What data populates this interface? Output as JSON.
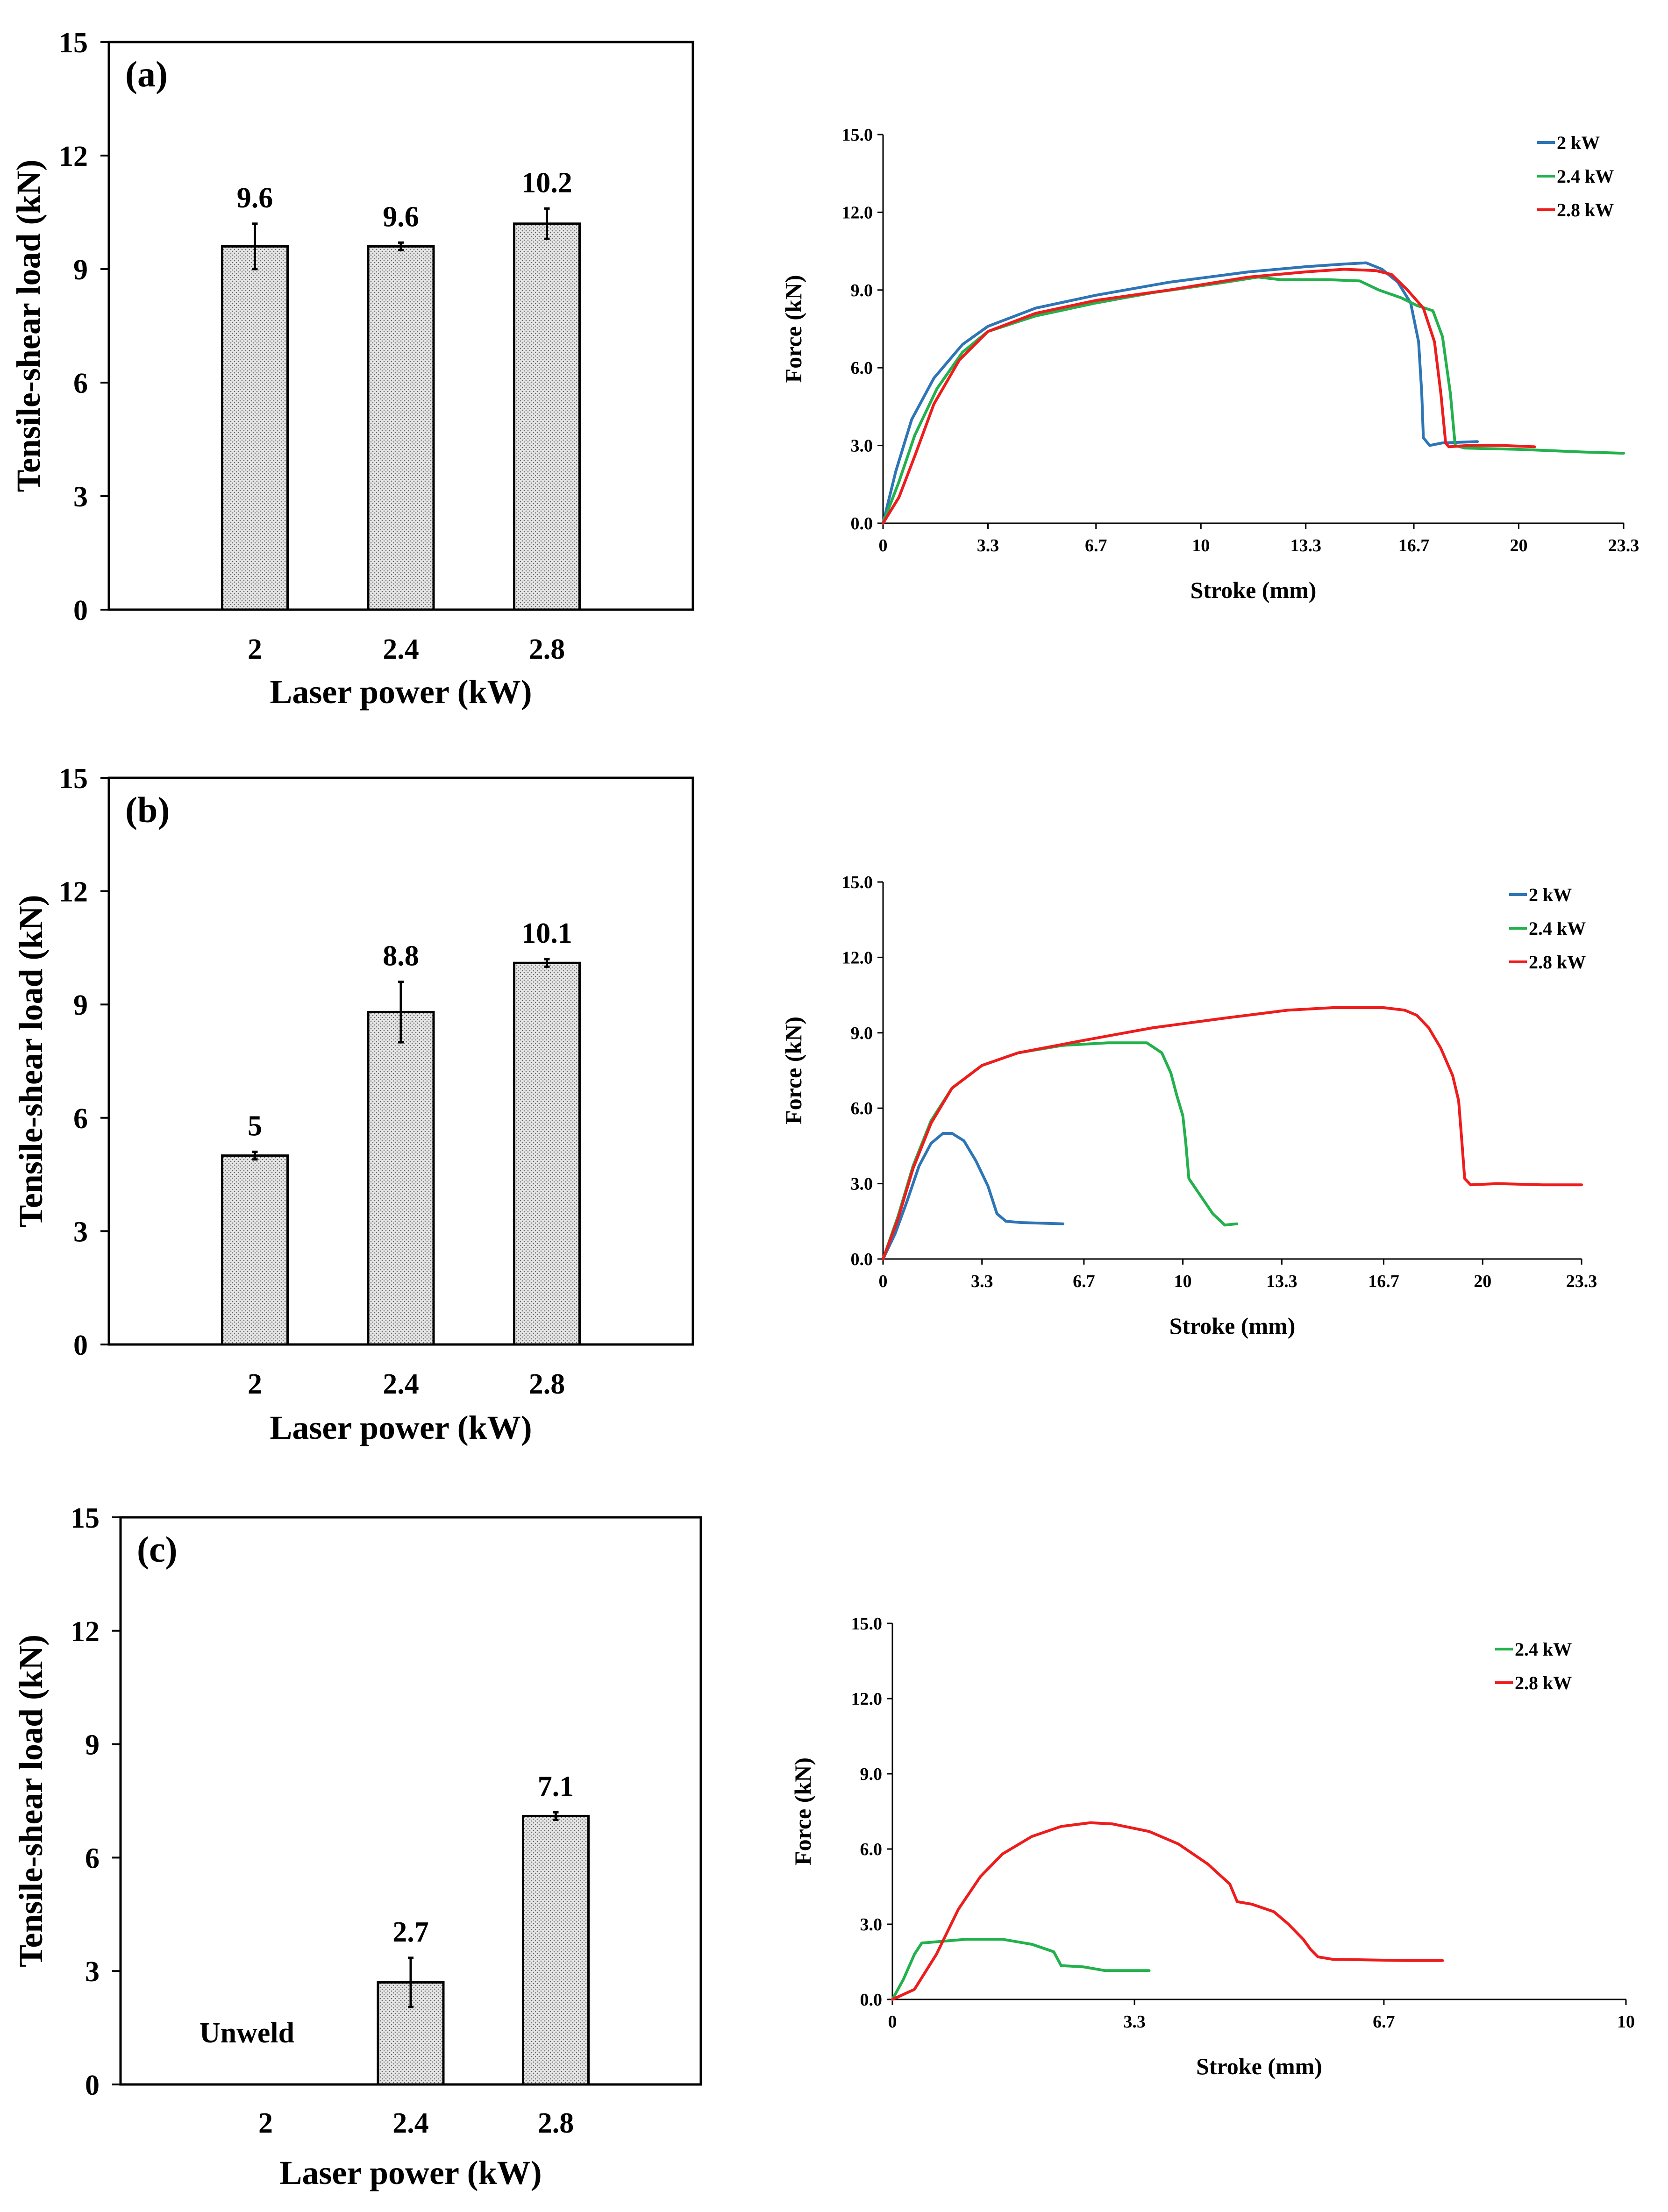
{
  "colors": {
    "blue": "#2e75b6",
    "green": "#22b14c",
    "red": "#ee1c1c",
    "bar_fill": "#e6e6e6",
    "axis": "#000000"
  },
  "chart_data": [
    {
      "type": "bar",
      "panel": "(a)",
      "categories": [
        "2",
        "2.4",
        "2.8"
      ],
      "values": [
        9.6,
        9.6,
        10.2
      ],
      "value_labels": [
        "9.6",
        "9.6",
        "10.2"
      ],
      "errors": [
        0.6,
        0.1,
        0.4
      ],
      "xlabel": "Laser power (kW)",
      "ylabel": "Tensile-shear load (kN)",
      "ylim": [
        0,
        15
      ],
      "yticks": [
        "0",
        "3",
        "6",
        "9",
        "12",
        "15"
      ]
    },
    {
      "type": "line",
      "xlabel": "Stroke (mm)",
      "ylabel": "Force (kN)",
      "xlim": [
        0,
        23.3
      ],
      "ylim": [
        0,
        15
      ],
      "xticks": [
        "0",
        "3.3",
        "6.7",
        "10",
        "13.3",
        "16.7",
        "20",
        "23.3"
      ],
      "yticks": [
        "0.0",
        "3.0",
        "6.0",
        "9.0",
        "12.0",
        "15.0"
      ],
      "legend": [
        "2 kW",
        "2.4 kW",
        "2.8 kW"
      ],
      "series": [
        {
          "name": "2 kW",
          "color": "blue",
          "points": [
            [
              0,
              0
            ],
            [
              0.4,
              2.0
            ],
            [
              0.9,
              4.0
            ],
            [
              1.6,
              5.6
            ],
            [
              2.5,
              6.9
            ],
            [
              3.3,
              7.6
            ],
            [
              4.8,
              8.3
            ],
            [
              6.7,
              8.8
            ],
            [
              9,
              9.3
            ],
            [
              11.5,
              9.7
            ],
            [
              13.3,
              9.9
            ],
            [
              14.5,
              10.0
            ],
            [
              15.2,
              10.05
            ],
            [
              15.7,
              9.8
            ],
            [
              16.2,
              9.3
            ],
            [
              16.6,
              8.5
            ],
            [
              16.85,
              7.0
            ],
            [
              16.95,
              5.0
            ],
            [
              17.0,
              3.3
            ],
            [
              17.2,
              3.0
            ],
            [
              17.6,
              3.1
            ],
            [
              18.7,
              3.15
            ]
          ]
        },
        {
          "name": "2.4 kW",
          "color": "green",
          "points": [
            [
              0,
              0
            ],
            [
              0.5,
              1.6
            ],
            [
              1.0,
              3.4
            ],
            [
              1.7,
              5.2
            ],
            [
              2.5,
              6.6
            ],
            [
              3.3,
              7.4
            ],
            [
              4.8,
              8.0
            ],
            [
              6.7,
              8.5
            ],
            [
              8.5,
              8.9
            ],
            [
              10.5,
              9.25
            ],
            [
              11.8,
              9.5
            ],
            [
              12.5,
              9.4
            ],
            [
              14,
              9.4
            ],
            [
              15.0,
              9.35
            ],
            [
              15.6,
              9.0
            ],
            [
              16.3,
              8.7
            ],
            [
              16.8,
              8.4
            ],
            [
              17.3,
              8.2
            ],
            [
              17.6,
              7.2
            ],
            [
              17.85,
              5.0
            ],
            [
              18.0,
              3.0
            ],
            [
              18.3,
              2.9
            ],
            [
              20,
              2.85
            ],
            [
              22,
              2.75
            ],
            [
              23.3,
              2.7
            ]
          ]
        },
        {
          "name": "2.8 kW",
          "color": "red",
          "points": [
            [
              0,
              0
            ],
            [
              0.5,
              1.0
            ],
            [
              1.0,
              2.6
            ],
            [
              1.6,
              4.6
            ],
            [
              2.4,
              6.3
            ],
            [
              3.3,
              7.4
            ],
            [
              4.8,
              8.1
            ],
            [
              6.7,
              8.6
            ],
            [
              9,
              9.0
            ],
            [
              11.5,
              9.5
            ],
            [
              13.3,
              9.7
            ],
            [
              14.5,
              9.8
            ],
            [
              15.5,
              9.75
            ],
            [
              16.0,
              9.6
            ],
            [
              16.5,
              9.0
            ],
            [
              17.0,
              8.3
            ],
            [
              17.35,
              7.0
            ],
            [
              17.55,
              5.0
            ],
            [
              17.7,
              3.1
            ],
            [
              17.8,
              2.95
            ],
            [
              18.4,
              3.0
            ],
            [
              19.5,
              3.0
            ],
            [
              20.5,
              2.95
            ]
          ]
        }
      ]
    },
    {
      "type": "bar",
      "panel": "(b)",
      "categories": [
        "2",
        "2.4",
        "2.8"
      ],
      "values": [
        5,
        8.8,
        10.1
      ],
      "value_labels": [
        "5",
        "8.8",
        "10.1"
      ],
      "errors": [
        0.1,
        0.8,
        0.1
      ],
      "xlabel": "Laser power (kW)",
      "ylabel": "Tensile-shear load (kN)",
      "ylim": [
        0,
        15
      ],
      "yticks": [
        "0",
        "3",
        "6",
        "9",
        "12",
        "15"
      ]
    },
    {
      "type": "line",
      "xlabel": "Stroke (mm)",
      "ylabel": "Force (kN)",
      "xlim": [
        0,
        23.3
      ],
      "ylim": [
        0,
        15
      ],
      "xticks": [
        "0",
        "3.3",
        "6.7",
        "10",
        "13.3",
        "16.7",
        "20",
        "23.3"
      ],
      "yticks": [
        "0.0",
        "3.0",
        "6.0",
        "9.0",
        "12.0",
        "15.0"
      ],
      "legend": [
        "2 kW",
        "2.4 kW",
        "2.8 kW"
      ],
      "series": [
        {
          "name": "2 kW",
          "color": "blue",
          "points": [
            [
              0,
              0
            ],
            [
              0.4,
              1.0
            ],
            [
              0.8,
              2.3
            ],
            [
              1.2,
              3.7
            ],
            [
              1.6,
              4.6
            ],
            [
              2.0,
              5.0
            ],
            [
              2.3,
              5.0
            ],
            [
              2.7,
              4.7
            ],
            [
              3.1,
              3.9
            ],
            [
              3.5,
              2.9
            ],
            [
              3.8,
              1.8
            ],
            [
              4.1,
              1.5
            ],
            [
              4.6,
              1.45
            ],
            [
              6.0,
              1.4
            ]
          ]
        },
        {
          "name": "2.4 kW",
          "color": "green",
          "points": [
            [
              0,
              0
            ],
            [
              0.5,
              1.7
            ],
            [
              1.0,
              3.7
            ],
            [
              1.6,
              5.5
            ],
            [
              2.3,
              6.8
            ],
            [
              3.3,
              7.7
            ],
            [
              4.5,
              8.2
            ],
            [
              6.0,
              8.5
            ],
            [
              7.5,
              8.6
            ],
            [
              8.8,
              8.6
            ],
            [
              9.3,
              8.2
            ],
            [
              9.6,
              7.4
            ],
            [
              9.8,
              6.5
            ],
            [
              10.0,
              5.7
            ],
            [
              10.1,
              4.6
            ],
            [
              10.2,
              3.2
            ],
            [
              10.6,
              2.5
            ],
            [
              11.0,
              1.8
            ],
            [
              11.4,
              1.35
            ],
            [
              11.8,
              1.4
            ]
          ]
        },
        {
          "name": "2.8 kW",
          "color": "red",
          "points": [
            [
              0,
              0
            ],
            [
              0.5,
              1.6
            ],
            [
              1.0,
              3.6
            ],
            [
              1.6,
              5.4
            ],
            [
              2.3,
              6.8
            ],
            [
              3.3,
              7.7
            ],
            [
              4.5,
              8.2
            ],
            [
              6.7,
              8.7
            ],
            [
              9,
              9.2
            ],
            [
              11.5,
              9.6
            ],
            [
              13.5,
              9.9
            ],
            [
              15,
              10.0
            ],
            [
              16.7,
              10.0
            ],
            [
              17.4,
              9.9
            ],
            [
              17.8,
              9.7
            ],
            [
              18.2,
              9.2
            ],
            [
              18.6,
              8.4
            ],
            [
              19.0,
              7.3
            ],
            [
              19.2,
              6.3
            ],
            [
              19.3,
              4.8
            ],
            [
              19.4,
              3.2
            ],
            [
              19.6,
              2.95
            ],
            [
              20.5,
              3.0
            ],
            [
              22,
              2.95
            ],
            [
              23.3,
              2.95
            ]
          ]
        }
      ]
    },
    {
      "type": "bar",
      "panel": "(c)",
      "categories": [
        "2",
        "2.4",
        "2.8"
      ],
      "values": [
        0,
        2.7,
        7.1
      ],
      "value_labels": [
        "Unweld",
        "2.7",
        "7.1"
      ],
      "errors": [
        0,
        0.65,
        0.1
      ],
      "xlabel": "Laser power (kW)",
      "ylabel": "Tensile-shear load (kN)",
      "ylim": [
        0,
        15
      ],
      "yticks": [
        "0",
        "3",
        "6",
        "9",
        "12",
        "15"
      ]
    },
    {
      "type": "line",
      "xlabel": "Stroke (mm)",
      "ylabel": "Force (kN)",
      "xlim": [
        0,
        10
      ],
      "ylim": [
        0,
        15
      ],
      "xticks": [
        "0",
        "3.3",
        "6.7",
        "10"
      ],
      "yticks": [
        "0.0",
        "3.0",
        "6.0",
        "9.0",
        "12.0",
        "15.0"
      ],
      "legend": [
        "2.4 kW",
        "2.8 kW"
      ],
      "series": [
        {
          "name": "2.4 kW",
          "color": "green",
          "points": [
            [
              0,
              0
            ],
            [
              0.15,
              0.8
            ],
            [
              0.3,
              1.8
            ],
            [
              0.4,
              2.25
            ],
            [
              0.6,
              2.3
            ],
            [
              1.0,
              2.4
            ],
            [
              1.5,
              2.4
            ],
            [
              1.9,
              2.2
            ],
            [
              2.2,
              1.9
            ],
            [
              2.3,
              1.35
            ],
            [
              2.6,
              1.3
            ],
            [
              2.8,
              1.2
            ],
            [
              2.9,
              1.15
            ],
            [
              3.5,
              1.15
            ]
          ]
        },
        {
          "name": "2.8 kW",
          "color": "red",
          "points": [
            [
              0,
              0
            ],
            [
              0.3,
              0.4
            ],
            [
              0.6,
              1.8
            ],
            [
              0.9,
              3.6
            ],
            [
              1.2,
              4.9
            ],
            [
              1.5,
              5.8
            ],
            [
              1.9,
              6.5
            ],
            [
              2.3,
              6.9
            ],
            [
              2.7,
              7.05
            ],
            [
              3.0,
              7.0
            ],
            [
              3.5,
              6.7
            ],
            [
              3.9,
              6.2
            ],
            [
              4.3,
              5.4
            ],
            [
              4.6,
              4.6
            ],
            [
              4.7,
              3.9
            ],
            [
              4.9,
              3.8
            ],
            [
              5.2,
              3.5
            ],
            [
              5.4,
              3.0
            ],
            [
              5.6,
              2.4
            ],
            [
              5.7,
              2.0
            ],
            [
              5.8,
              1.7
            ],
            [
              6.0,
              1.6
            ],
            [
              7.0,
              1.55
            ],
            [
              7.5,
              1.55
            ]
          ]
        }
      ]
    }
  ]
}
